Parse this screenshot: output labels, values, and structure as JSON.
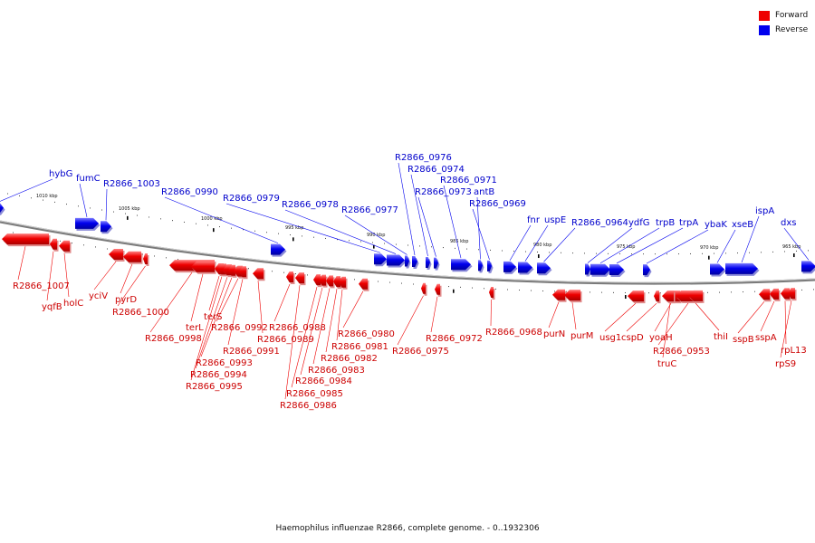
{
  "caption": "Haemophilus influenzae R2866, complete genome. - 0..1932306",
  "legend": [
    {
      "label": "Forward",
      "color": "#ee0000"
    },
    {
      "label": "Reverse",
      "color": "#0000ee"
    }
  ],
  "colors": {
    "forward": "#ee0000",
    "reverse": "#0000ee",
    "backbone": "#888888"
  },
  "ticks": [
    {
      "label": "1010 kbp",
      "kbp": 1010
    },
    {
      "label": "1005 kbp",
      "kbp": 1005
    },
    {
      "label": "1000 kbp",
      "kbp": 1000
    },
    {
      "label": "995 kbp",
      "kbp": 995
    },
    {
      "label": "990 kbp",
      "kbp": 990
    },
    {
      "label": "985 kbp",
      "kbp": 985
    },
    {
      "label": "980 kbp",
      "kbp": 980
    },
    {
      "label": "975 kbp",
      "kbp": 975
    },
    {
      "label": "970 kbp",
      "kbp": 970
    },
    {
      "label": "965 kbp",
      "kbp": 965
    }
  ],
  "reverse_genes": [
    "hybG",
    "fumC",
    "R2866_1003",
    "R2866_0990",
    "R2866_0979",
    "R2866_0978",
    "R2866_0977",
    "R2866_0976",
    "R2866_0974",
    "R2866_0973",
    "R2866_0971",
    "antB",
    "R2866_0969",
    "fnr",
    "uspE",
    "R2866_0964",
    "ydfG",
    "trpB",
    "trpA",
    "ybaK",
    "xseB",
    "ispA",
    "dxs"
  ],
  "forward_genes": [
    "R2866_1007",
    "yqfB",
    "holC",
    "yciV",
    "pyrD",
    "R2866_1000",
    "R2866_0998",
    "terL",
    "terS",
    "R2866_0995",
    "R2866_0994",
    "R2866_0993",
    "R2866_0992",
    "R2866_0991",
    "R2866_0989",
    "R2866_0988",
    "R2866_0986",
    "R2866_0985",
    "R2866_0984",
    "R2866_0983",
    "R2866_0982",
    "R2866_0981",
    "R2866_0980",
    "R2866_0975",
    "R2866_0972",
    "R2866_0968",
    "purN",
    "purM",
    "usg1",
    "cspD",
    "yoaH",
    "truC",
    "R2866_0953",
    "thiI",
    "sspB",
    "sspA",
    "rpL13",
    "rpS9"
  ]
}
